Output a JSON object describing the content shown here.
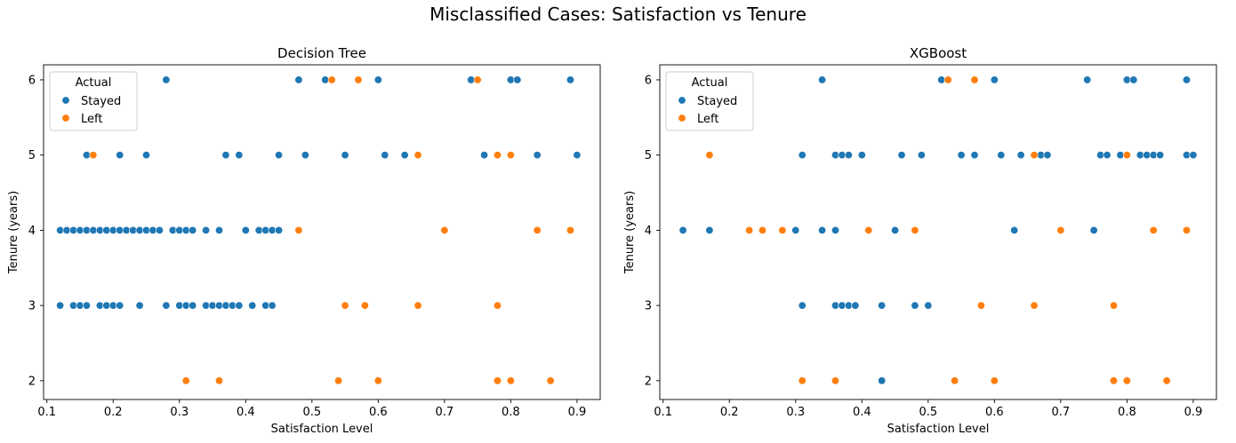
{
  "suptitle": "Misclassified Cases: Satisfaction vs Tenure",
  "colors": {
    "Stayed": "#1f77b4",
    "Left": "#ff7f0e"
  },
  "chart_data": [
    {
      "type": "scatter",
      "title": "Decision Tree",
      "xlabel": "Satisfaction Level",
      "ylabel": "Tenure (years)",
      "xlim": [
        0.095,
        0.935
      ],
      "ylim": [
        1.75,
        6.2
      ],
      "xticks": [
        0.1,
        0.2,
        0.3,
        0.4,
        0.5,
        0.6,
        0.7,
        0.8,
        0.9
      ],
      "xtick_labels": [
        "0.1",
        "0.2",
        "0.3",
        "0.4",
        "0.5",
        "0.6",
        "0.7",
        "0.8",
        "0.9"
      ],
      "yticks": [
        2,
        3,
        4,
        5,
        6
      ],
      "ytick_labels": [
        "2",
        "3",
        "4",
        "5",
        "6"
      ],
      "legend": {
        "title": "Actual",
        "position": "upper left",
        "entries": [
          "Stayed",
          "Left"
        ]
      },
      "series": [
        {
          "name": "Stayed",
          "points": [
            [
              0.28,
              6
            ],
            [
              0.48,
              6
            ],
            [
              0.52,
              6
            ],
            [
              0.6,
              6
            ],
            [
              0.74,
              6
            ],
            [
              0.8,
              6
            ],
            [
              0.81,
              6
            ],
            [
              0.89,
              6
            ],
            [
              0.16,
              5
            ],
            [
              0.21,
              5
            ],
            [
              0.25,
              5
            ],
            [
              0.37,
              5
            ],
            [
              0.39,
              5
            ],
            [
              0.45,
              5
            ],
            [
              0.49,
              5
            ],
            [
              0.55,
              5
            ],
            [
              0.61,
              5
            ],
            [
              0.64,
              5
            ],
            [
              0.76,
              5
            ],
            [
              0.84,
              5
            ],
            [
              0.9,
              5
            ],
            [
              0.12,
              4
            ],
            [
              0.13,
              4
            ],
            [
              0.14,
              4
            ],
            [
              0.15,
              4
            ],
            [
              0.16,
              4
            ],
            [
              0.17,
              4
            ],
            [
              0.18,
              4
            ],
            [
              0.19,
              4
            ],
            [
              0.2,
              4
            ],
            [
              0.21,
              4
            ],
            [
              0.22,
              4
            ],
            [
              0.23,
              4
            ],
            [
              0.24,
              4
            ],
            [
              0.25,
              4
            ],
            [
              0.26,
              4
            ],
            [
              0.27,
              4
            ],
            [
              0.29,
              4
            ],
            [
              0.3,
              4
            ],
            [
              0.31,
              4
            ],
            [
              0.32,
              4
            ],
            [
              0.34,
              4
            ],
            [
              0.36,
              4
            ],
            [
              0.4,
              4
            ],
            [
              0.42,
              4
            ],
            [
              0.43,
              4
            ],
            [
              0.44,
              4
            ],
            [
              0.45,
              4
            ],
            [
              0.12,
              3
            ],
            [
              0.14,
              3
            ],
            [
              0.15,
              3
            ],
            [
              0.16,
              3
            ],
            [
              0.18,
              3
            ],
            [
              0.19,
              3
            ],
            [
              0.2,
              3
            ],
            [
              0.21,
              3
            ],
            [
              0.24,
              3
            ],
            [
              0.28,
              3
            ],
            [
              0.3,
              3
            ],
            [
              0.31,
              3
            ],
            [
              0.32,
              3
            ],
            [
              0.34,
              3
            ],
            [
              0.35,
              3
            ],
            [
              0.36,
              3
            ],
            [
              0.37,
              3
            ],
            [
              0.38,
              3
            ],
            [
              0.39,
              3
            ],
            [
              0.41,
              3
            ],
            [
              0.43,
              3
            ],
            [
              0.44,
              3
            ]
          ]
        },
        {
          "name": "Left",
          "points": [
            [
              0.53,
              6
            ],
            [
              0.57,
              6
            ],
            [
              0.75,
              6
            ],
            [
              0.17,
              5
            ],
            [
              0.66,
              5
            ],
            [
              0.78,
              5
            ],
            [
              0.8,
              5
            ],
            [
              0.48,
              4
            ],
            [
              0.7,
              4
            ],
            [
              0.84,
              4
            ],
            [
              0.89,
              4
            ],
            [
              0.55,
              3
            ],
            [
              0.58,
              3
            ],
            [
              0.66,
              3
            ],
            [
              0.78,
              3
            ],
            [
              0.31,
              2
            ],
            [
              0.36,
              2
            ],
            [
              0.54,
              2
            ],
            [
              0.6,
              2
            ],
            [
              0.78,
              2
            ],
            [
              0.8,
              2
            ],
            [
              0.86,
              2
            ]
          ]
        }
      ]
    },
    {
      "type": "scatter",
      "title": "XGBoost",
      "xlabel": "Satisfaction Level",
      "ylabel": "Tenure (years)",
      "xlim": [
        0.095,
        0.935
      ],
      "ylim": [
        1.75,
        6.2
      ],
      "xticks": [
        0.1,
        0.2,
        0.3,
        0.4,
        0.5,
        0.6,
        0.7,
        0.8,
        0.9
      ],
      "xtick_labels": [
        "0.1",
        "0.2",
        "0.3",
        "0.4",
        "0.5",
        "0.6",
        "0.7",
        "0.8",
        "0.9"
      ],
      "yticks": [
        2,
        3,
        4,
        5,
        6
      ],
      "ytick_labels": [
        "2",
        "3",
        "4",
        "5",
        "6"
      ],
      "legend": {
        "title": "Actual",
        "position": "upper left",
        "entries": [
          "Stayed",
          "Left"
        ]
      },
      "series": [
        {
          "name": "Stayed",
          "points": [
            [
              0.34,
              6
            ],
            [
              0.52,
              6
            ],
            [
              0.6,
              6
            ],
            [
              0.74,
              6
            ],
            [
              0.8,
              6
            ],
            [
              0.81,
              6
            ],
            [
              0.89,
              6
            ],
            [
              0.31,
              5
            ],
            [
              0.36,
              5
            ],
            [
              0.37,
              5
            ],
            [
              0.38,
              5
            ],
            [
              0.4,
              5
            ],
            [
              0.46,
              5
            ],
            [
              0.49,
              5
            ],
            [
              0.55,
              5
            ],
            [
              0.57,
              5
            ],
            [
              0.61,
              5
            ],
            [
              0.64,
              5
            ],
            [
              0.67,
              5
            ],
            [
              0.68,
              5
            ],
            [
              0.76,
              5
            ],
            [
              0.77,
              5
            ],
            [
              0.79,
              5
            ],
            [
              0.82,
              5
            ],
            [
              0.83,
              5
            ],
            [
              0.84,
              5
            ],
            [
              0.85,
              5
            ],
            [
              0.89,
              5
            ],
            [
              0.9,
              5
            ],
            [
              0.13,
              4
            ],
            [
              0.17,
              4
            ],
            [
              0.3,
              4
            ],
            [
              0.34,
              4
            ],
            [
              0.36,
              4
            ],
            [
              0.45,
              4
            ],
            [
              0.63,
              4
            ],
            [
              0.75,
              4
            ],
            [
              0.31,
              3
            ],
            [
              0.36,
              3
            ],
            [
              0.37,
              3
            ],
            [
              0.38,
              3
            ],
            [
              0.39,
              3
            ],
            [
              0.43,
              3
            ],
            [
              0.48,
              3
            ],
            [
              0.5,
              3
            ],
            [
              0.43,
              2
            ]
          ]
        },
        {
          "name": "Left",
          "points": [
            [
              0.53,
              6
            ],
            [
              0.57,
              6
            ],
            [
              0.17,
              5
            ],
            [
              0.66,
              5
            ],
            [
              0.8,
              5
            ],
            [
              0.23,
              4
            ],
            [
              0.25,
              4
            ],
            [
              0.28,
              4
            ],
            [
              0.41,
              4
            ],
            [
              0.48,
              4
            ],
            [
              0.7,
              4
            ],
            [
              0.84,
              4
            ],
            [
              0.89,
              4
            ],
            [
              0.58,
              3
            ],
            [
              0.66,
              3
            ],
            [
              0.78,
              3
            ],
            [
              0.31,
              2
            ],
            [
              0.36,
              2
            ],
            [
              0.54,
              2
            ],
            [
              0.6,
              2
            ],
            [
              0.78,
              2
            ],
            [
              0.8,
              2
            ],
            [
              0.86,
              2
            ]
          ]
        }
      ]
    }
  ]
}
